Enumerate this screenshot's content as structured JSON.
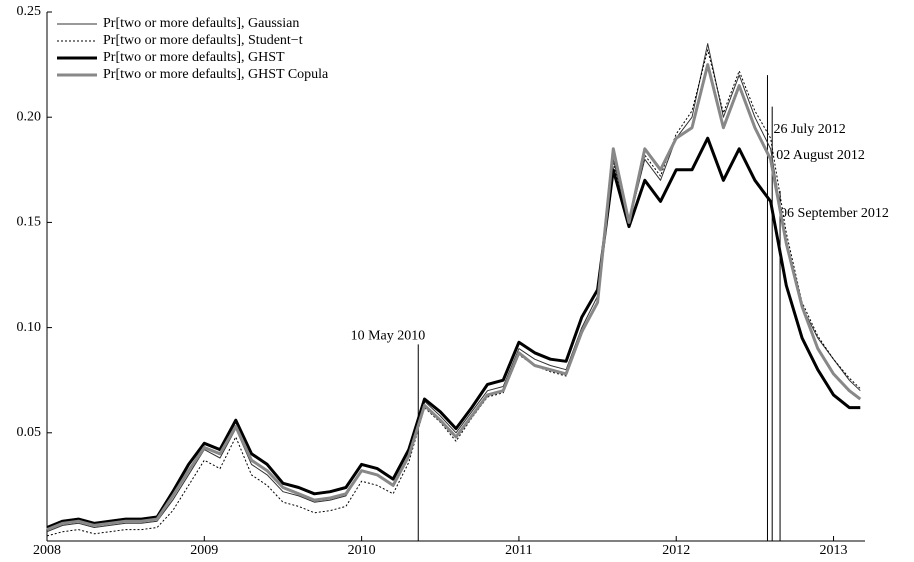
{
  "chart_data": {
    "type": "line",
    "x": [
      2008.0,
      2008.1,
      2008.2,
      2008.3,
      2008.4,
      2008.5,
      2008.6,
      2008.7,
      2008.8,
      2008.9,
      2009.0,
      2009.1,
      2009.2,
      2009.3,
      2009.4,
      2009.5,
      2009.6,
      2009.7,
      2009.8,
      2009.9,
      2010.0,
      2010.1,
      2010.2,
      2010.3,
      2010.4,
      2010.5,
      2010.6,
      2010.7,
      2010.8,
      2010.9,
      2011.0,
      2011.1,
      2011.2,
      2011.3,
      2011.4,
      2011.5,
      2011.6,
      2011.7,
      2011.8,
      2011.9,
      2012.0,
      2012.1,
      2012.2,
      2012.3,
      2012.4,
      2012.5,
      2012.6,
      2012.7,
      2012.8,
      2012.9,
      2013.0,
      2013.1,
      2013.17
    ],
    "series": [
      {
        "name": "Pr[two or more defaults], Gaussian",
        "color": "#333333",
        "line_width": 1,
        "dash": false,
        "values": [
          0.003,
          0.006,
          0.007,
          0.005,
          0.006,
          0.007,
          0.007,
          0.008,
          0.018,
          0.03,
          0.042,
          0.038,
          0.052,
          0.035,
          0.03,
          0.022,
          0.02,
          0.017,
          0.018,
          0.02,
          0.032,
          0.03,
          0.025,
          0.04,
          0.065,
          0.058,
          0.05,
          0.06,
          0.07,
          0.072,
          0.09,
          0.085,
          0.082,
          0.08,
          0.1,
          0.115,
          0.18,
          0.15,
          0.18,
          0.17,
          0.19,
          0.2,
          0.235,
          0.2,
          0.22,
          0.2,
          0.185,
          0.14,
          0.11,
          0.095,
          0.085,
          0.075,
          0.07
        ]
      },
      {
        "name": "Pr[two or more defaults], Student−t",
        "color": "#000000",
        "line_width": 1,
        "dash": true,
        "values": [
          0.001,
          0.003,
          0.004,
          0.002,
          0.003,
          0.004,
          0.004,
          0.005,
          0.013,
          0.025,
          0.037,
          0.033,
          0.048,
          0.03,
          0.025,
          0.017,
          0.015,
          0.012,
          0.013,
          0.015,
          0.027,
          0.025,
          0.021,
          0.036,
          0.062,
          0.055,
          0.046,
          0.057,
          0.067,
          0.069,
          0.087,
          0.082,
          0.079,
          0.077,
          0.097,
          0.112,
          0.178,
          0.149,
          0.182,
          0.172,
          0.192,
          0.203,
          0.232,
          0.202,
          0.222,
          0.203,
          0.19,
          0.145,
          0.112,
          0.096,
          0.085,
          0.076,
          0.071
        ]
      },
      {
        "name": "Pr[two or more defaults], GHST",
        "color": "#000000",
        "line_width": 3,
        "dash": false,
        "values": [
          0.005,
          0.008,
          0.009,
          0.007,
          0.008,
          0.009,
          0.009,
          0.01,
          0.022,
          0.035,
          0.045,
          0.042,
          0.056,
          0.04,
          0.035,
          0.026,
          0.024,
          0.021,
          0.022,
          0.024,
          0.035,
          0.033,
          0.028,
          0.042,
          0.066,
          0.06,
          0.052,
          0.062,
          0.073,
          0.075,
          0.093,
          0.088,
          0.085,
          0.084,
          0.105,
          0.118,
          0.175,
          0.148,
          0.17,
          0.16,
          0.175,
          0.175,
          0.19,
          0.17,
          0.185,
          0.17,
          0.16,
          0.12,
          0.095,
          0.08,
          0.068,
          0.062,
          0.062
        ]
      },
      {
        "name": "Pr[two or more defaults], GHST Copula",
        "color": "#888888",
        "line_width": 3,
        "dash": false,
        "values": [
          0.004,
          0.007,
          0.008,
          0.006,
          0.007,
          0.008,
          0.008,
          0.009,
          0.02,
          0.032,
          0.043,
          0.04,
          0.053,
          0.037,
          0.032,
          0.024,
          0.021,
          0.018,
          0.019,
          0.021,
          0.032,
          0.03,
          0.025,
          0.039,
          0.063,
          0.056,
          0.048,
          0.058,
          0.068,
          0.07,
          0.088,
          0.082,
          0.08,
          0.078,
          0.098,
          0.112,
          0.185,
          0.15,
          0.185,
          0.175,
          0.19,
          0.195,
          0.225,
          0.195,
          0.215,
          0.195,
          0.18,
          0.14,
          0.11,
          0.09,
          0.078,
          0.07,
          0.066
        ]
      }
    ],
    "annotations": [
      {
        "label": "10 May 2010",
        "x": 2010.36,
        "y": 0.092
      },
      {
        "label": "26 July 2012",
        "x": 2012.58,
        "y": 0.22
      },
      {
        "label": "02 August 2012",
        "x": 2012.61,
        "y": 0.205
      },
      {
        "label": "06 September 2012",
        "x": 2012.66,
        "y": 0.165
      }
    ],
    "xlim": [
      2008,
      2013.2
    ],
    "xticks": [
      2008,
      2009,
      2010,
      2011,
      2012,
      2013
    ],
    "ylim": [
      0,
      0.25
    ],
    "yticks": [
      0.05,
      {
        "value": 0.1,
        "label": "0.10"
      },
      0.15,
      {
        "value": 0.2,
        "label": "0.20"
      },
      0.25
    ],
    "legend": "upper left"
  }
}
